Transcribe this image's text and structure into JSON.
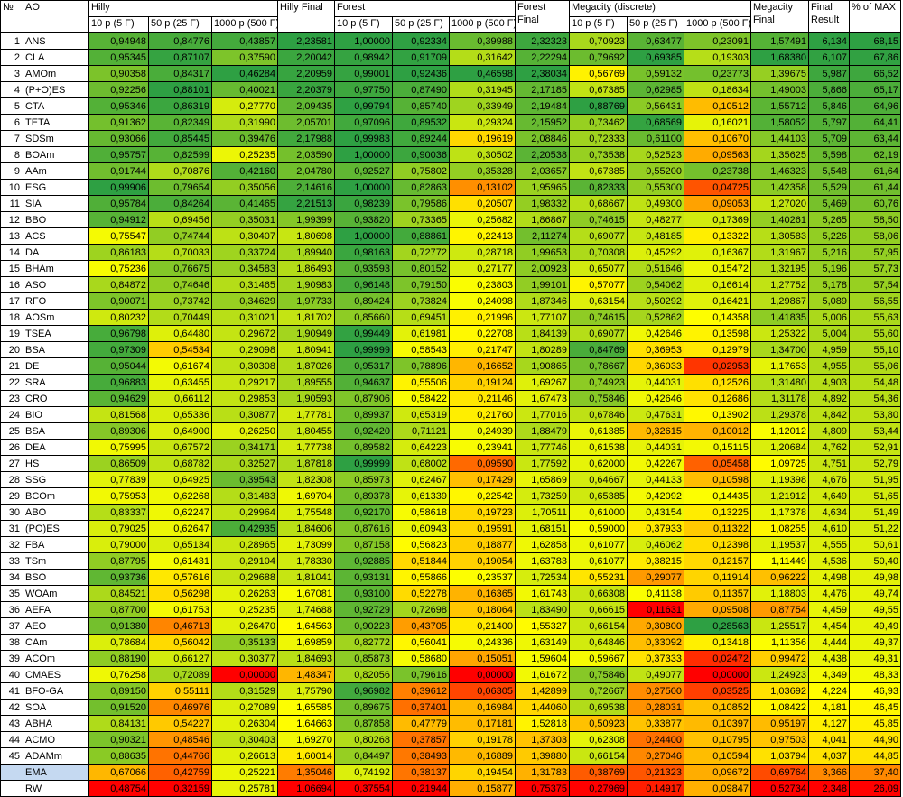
{
  "headers": {
    "idx": "№",
    "ao": "AO",
    "hilly": "Hilly",
    "forest": "Forest",
    "megacity": "Megacity (discrete)",
    "sub1": "10 p (5 F)",
    "sub2": "50 p (25 F)",
    "sub3": "1000 p (500 F)",
    "hilly_final": "Hilly Final",
    "forest_final": "Forest Final",
    "megacity_final": "Megacity Final",
    "final_result": "Final Result",
    "pct_max": "% of MAX"
  },
  "colors": {
    "scale_low": "#ff0000",
    "scale_mid": "#ffff00",
    "scale_high": "#2ea043",
    "highlight_row": "#c5d9f1"
  },
  "rows": [
    {
      "n": "1",
      "ao": "ANS",
      "v": [
        "0,94948",
        "0,84776",
        "0,43857",
        "2,23581",
        "1,00000",
        "0,92334",
        "0,39988",
        "2,32323",
        "0,70923",
        "0,63477",
        "0,23091",
        "1,57491",
        "6,134",
        "68,15"
      ]
    },
    {
      "n": "2",
      "ao": "CLA",
      "v": [
        "0,95345",
        "0,87107",
        "0,37590",
        "2,20042",
        "0,98942",
        "0,91709",
        "0,31642",
        "2,22294",
        "0,79692",
        "0,69385",
        "0,19303",
        "1,68380",
        "6,107",
        "67,86"
      ]
    },
    {
      "n": "3",
      "ao": "AMOm",
      "v": [
        "0,90358",
        "0,84317",
        "0,46284",
        "2,20959",
        "0,99001",
        "0,92436",
        "0,46598",
        "2,38034",
        "0,56769",
        "0,59132",
        "0,23773",
        "1,39675",
        "5,987",
        "66,52"
      ]
    },
    {
      "n": "4",
      "ao": "(P+O)ES",
      "v": [
        "0,92256",
        "0,88101",
        "0,40021",
        "2,20379",
        "0,97750",
        "0,87490",
        "0,31945",
        "2,17185",
        "0,67385",
        "0,62985",
        "0,18634",
        "1,49003",
        "5,866",
        "65,17"
      ]
    },
    {
      "n": "5",
      "ao": "CTA",
      "v": [
        "0,95346",
        "0,86319",
        "0,27770",
        "2,09435",
        "0,99794",
        "0,85740",
        "0,33949",
        "2,19484",
        "0,88769",
        "0,56431",
        "0,10512",
        "1,55712",
        "5,846",
        "64,96"
      ]
    },
    {
      "n": "6",
      "ao": "TETA",
      "v": [
        "0,91362",
        "0,82349",
        "0,31990",
        "2,05701",
        "0,97096",
        "0,89532",
        "0,29324",
        "2,15952",
        "0,73462",
        "0,68569",
        "0,16021",
        "1,58052",
        "5,797",
        "64,41"
      ]
    },
    {
      "n": "7",
      "ao": "SDSm",
      "v": [
        "0,93066",
        "0,85445",
        "0,39476",
        "2,17988",
        "0,99983",
        "0,89244",
        "0,19619",
        "2,08846",
        "0,72333",
        "0,61100",
        "0,10670",
        "1,44103",
        "5,709",
        "63,44"
      ]
    },
    {
      "n": "8",
      "ao": "BOAm",
      "v": [
        "0,95757",
        "0,82599",
        "0,25235",
        "2,03590",
        "1,00000",
        "0,90036",
        "0,30502",
        "2,20538",
        "0,73538",
        "0,52523",
        "0,09563",
        "1,35625",
        "5,598",
        "62,19"
      ]
    },
    {
      "n": "9",
      "ao": "AAm",
      "v": [
        "0,91744",
        "0,70876",
        "0,42160",
        "2,04780",
        "0,92527",
        "0,75802",
        "0,35328",
        "2,03657",
        "0,67385",
        "0,55200",
        "0,23738",
        "1,46323",
        "5,548",
        "61,64"
      ]
    },
    {
      "n": "10",
      "ao": "ESG",
      "v": [
        "0,99906",
        "0,79654",
        "0,35056",
        "2,14616",
        "1,00000",
        "0,82863",
        "0,13102",
        "1,95965",
        "0,82333",
        "0,55300",
        "0,04725",
        "1,42358",
        "5,529",
        "61,44"
      ]
    },
    {
      "n": "11",
      "ao": "SIA",
      "v": [
        "0,95784",
        "0,84264",
        "0,41465",
        "2,21513",
        "0,98239",
        "0,79586",
        "0,20507",
        "1,98332",
        "0,68667",
        "0,49300",
        "0,09053",
        "1,27020",
        "5,469",
        "60,76"
      ]
    },
    {
      "n": "12",
      "ao": "BBO",
      "v": [
        "0,94912",
        "0,69456",
        "0,35031",
        "1,99399",
        "0,93820",
        "0,73365",
        "0,25682",
        "1,86867",
        "0,74615",
        "0,48277",
        "0,17369",
        "1,40261",
        "5,265",
        "58,50"
      ]
    },
    {
      "n": "13",
      "ao": "ACS",
      "v": [
        "0,75547",
        "0,74744",
        "0,30407",
        "1,80698",
        "1,00000",
        "0,88861",
        "0,22413",
        "2,11274",
        "0,69077",
        "0,48185",
        "0,13322",
        "1,30583",
        "5,226",
        "58,06"
      ]
    },
    {
      "n": "14",
      "ao": "DA",
      "v": [
        "0,86183",
        "0,70033",
        "0,33724",
        "1,89940",
        "0,98163",
        "0,72772",
        "0,28718",
        "1,99653",
        "0,70308",
        "0,45292",
        "0,16367",
        "1,31967",
        "5,216",
        "57,95"
      ]
    },
    {
      "n": "15",
      "ao": "BHAm",
      "v": [
        "0,75236",
        "0,76675",
        "0,34583",
        "1,86493",
        "0,93593",
        "0,80152",
        "0,27177",
        "2,00923",
        "0,65077",
        "0,51646",
        "0,15472",
        "1,32195",
        "5,196",
        "57,73"
      ]
    },
    {
      "n": "16",
      "ao": "ASO",
      "v": [
        "0,84872",
        "0,74646",
        "0,31465",
        "1,90983",
        "0,96148",
        "0,79150",
        "0,23803",
        "1,99101",
        "0,57077",
        "0,54062",
        "0,16614",
        "1,27752",
        "5,178",
        "57,54"
      ]
    },
    {
      "n": "17",
      "ao": "RFO",
      "v": [
        "0,90071",
        "0,73742",
        "0,34629",
        "1,97733",
        "0,89424",
        "0,73824",
        "0,24098",
        "1,87346",
        "0,63154",
        "0,50292",
        "0,16421",
        "1,29867",
        "5,089",
        "56,55"
      ]
    },
    {
      "n": "18",
      "ao": "AOSm",
      "v": [
        "0,80232",
        "0,70449",
        "0,31021",
        "1,81702",
        "0,85660",
        "0,69451",
        "0,21996",
        "1,77107",
        "0,74615",
        "0,52862",
        "0,14358",
        "1,41835",
        "5,006",
        "55,63"
      ]
    },
    {
      "n": "19",
      "ao": "TSEA",
      "v": [
        "0,96798",
        "0,64480",
        "0,29672",
        "1,90949",
        "0,99449",
        "0,61981",
        "0,22708",
        "1,84139",
        "0,69077",
        "0,42646",
        "0,13598",
        "1,25322",
        "5,004",
        "55,60"
      ]
    },
    {
      "n": "20",
      "ao": "BSA",
      "v": [
        "0,97309",
        "0,54534",
        "0,29098",
        "1,80941",
        "0,99999",
        "0,58543",
        "0,21747",
        "1,80289",
        "0,84769",
        "0,36953",
        "0,12979",
        "1,34700",
        "4,959",
        "55,10"
      ]
    },
    {
      "n": "21",
      "ao": "DE",
      "v": [
        "0,95044",
        "0,61674",
        "0,30308",
        "1,87026",
        "0,95317",
        "0,78896",
        "0,16652",
        "1,90865",
        "0,78667",
        "0,36033",
        "0,02953",
        "1,17653",
        "4,955",
        "55,06"
      ]
    },
    {
      "n": "22",
      "ao": "SRA",
      "v": [
        "0,96883",
        "0,63455",
        "0,29217",
        "1,89555",
        "0,94637",
        "0,55506",
        "0,19124",
        "1,69267",
        "0,74923",
        "0,44031",
        "0,12526",
        "1,31480",
        "4,903",
        "54,48"
      ]
    },
    {
      "n": "23",
      "ao": "CRO",
      "v": [
        "0,94629",
        "0,66112",
        "0,29853",
        "1,90593",
        "0,87906",
        "0,58422",
        "0,21146",
        "1,67473",
        "0,75846",
        "0,42646",
        "0,12686",
        "1,31178",
        "4,892",
        "54,36"
      ]
    },
    {
      "n": "24",
      "ao": "BIO",
      "v": [
        "0,81568",
        "0,65336",
        "0,30877",
        "1,77781",
        "0,89937",
        "0,65319",
        "0,21760",
        "1,77016",
        "0,67846",
        "0,47631",
        "0,13902",
        "1,29378",
        "4,842",
        "53,80"
      ]
    },
    {
      "n": "25",
      "ao": "BSA",
      "v": [
        "0,89306",
        "0,64900",
        "0,26250",
        "1,80455",
        "0,92420",
        "0,71121",
        "0,24939",
        "1,88479",
        "0,61385",
        "0,32615",
        "0,10012",
        "1,12012",
        "4,809",
        "53,44"
      ]
    },
    {
      "n": "26",
      "ao": "DEA",
      "v": [
        "0,75995",
        "0,67572",
        "0,34171",
        "1,77738",
        "0,89582",
        "0,64223",
        "0,23941",
        "1,77746",
        "0,61538",
        "0,44031",
        "0,15115",
        "1,20684",
        "4,762",
        "52,91"
      ]
    },
    {
      "n": "27",
      "ao": "HS",
      "v": [
        "0,86509",
        "0,68782",
        "0,32527",
        "1,87818",
        "0,99999",
        "0,68002",
        "0,09590",
        "1,77592",
        "0,62000",
        "0,42267",
        "0,05458",
        "1,09725",
        "4,751",
        "52,79"
      ]
    },
    {
      "n": "28",
      "ao": "SSG",
      "v": [
        "0,77839",
        "0,64925",
        "0,39543",
        "1,82308",
        "0,85973",
        "0,62467",
        "0,17429",
        "1,65869",
        "0,64667",
        "0,44133",
        "0,10598",
        "1,19398",
        "4,676",
        "51,95"
      ]
    },
    {
      "n": "29",
      "ao": "BCOm",
      "v": [
        "0,75953",
        "0,62268",
        "0,31483",
        "1,69704",
        "0,89378",
        "0,61339",
        "0,22542",
        "1,73259",
        "0,65385",
        "0,42092",
        "0,14435",
        "1,21912",
        "4,649",
        "51,65"
      ]
    },
    {
      "n": "30",
      "ao": "ABO",
      "v": [
        "0,83337",
        "0,62247",
        "0,29964",
        "1,75548",
        "0,92170",
        "0,58618",
        "0,19723",
        "1,70511",
        "0,61000",
        "0,43154",
        "0,13225",
        "1,17378",
        "4,634",
        "51,49"
      ]
    },
    {
      "n": "31",
      "ao": "(PO)ES",
      "v": [
        "0,79025",
        "0,62647",
        "0,42935",
        "1,84606",
        "0,87616",
        "0,60943",
        "0,19591",
        "1,68151",
        "0,59000",
        "0,37933",
        "0,11322",
        "1,08255",
        "4,610",
        "51,22"
      ]
    },
    {
      "n": "32",
      "ao": "FBA",
      "v": [
        "0,79000",
        "0,65134",
        "0,28965",
        "1,73099",
        "0,87158",
        "0,56823",
        "0,18877",
        "1,62858",
        "0,61077",
        "0,46062",
        "0,12398",
        "1,19537",
        "4,555",
        "50,61"
      ]
    },
    {
      "n": "33",
      "ao": "TSm",
      "v": [
        "0,87795",
        "0,61431",
        "0,29104",
        "1,78330",
        "0,92885",
        "0,51844",
        "0,19054",
        "1,63783",
        "0,61077",
        "0,38215",
        "0,12157",
        "1,11449",
        "4,536",
        "50,40"
      ]
    },
    {
      "n": "34",
      "ao": "BSO",
      "v": [
        "0,93736",
        "0,57616",
        "0,29688",
        "1,81041",
        "0,93131",
        "0,55866",
        "0,23537",
        "1,72534",
        "0,55231",
        "0,29077",
        "0,11914",
        "0,96222",
        "4,498",
        "49,98"
      ]
    },
    {
      "n": "35",
      "ao": "WOAm",
      "v": [
        "0,84521",
        "0,56298",
        "0,26263",
        "1,67081",
        "0,93100",
        "0,52278",
        "0,16365",
        "1,61743",
        "0,66308",
        "0,41138",
        "0,11357",
        "1,18803",
        "4,476",
        "49,74"
      ]
    },
    {
      "n": "36",
      "ao": "AEFA",
      "v": [
        "0,87700",
        "0,61753",
        "0,25235",
        "1,74688",
        "0,92729",
        "0,72698",
        "0,18064",
        "1,83490",
        "0,66615",
        "0,11631",
        "0,09508",
        "0,87754",
        "4,459",
        "49,55"
      ]
    },
    {
      "n": "37",
      "ao": "AEO",
      "v": [
        "0,91380",
        "0,46713",
        "0,26470",
        "1,64563",
        "0,90223",
        "0,43705",
        "0,21400",
        "1,55327",
        "0,66154",
        "0,30800",
        "0,28563",
        "1,25517",
        "4,454",
        "49,49"
      ]
    },
    {
      "n": "38",
      "ao": "CAm",
      "v": [
        "0,78684",
        "0,56042",
        "0,35133",
        "1,69859",
        "0,82772",
        "0,56041",
        "0,24336",
        "1,63149",
        "0,64846",
        "0,33092",
        "0,13418",
        "1,11356",
        "4,444",
        "49,37"
      ]
    },
    {
      "n": "39",
      "ao": "ACOm",
      "v": [
        "0,88190",
        "0,66127",
        "0,30377",
        "1,84693",
        "0,85873",
        "0,58680",
        "0,15051",
        "1,59604",
        "0,59667",
        "0,37333",
        "0,02472",
        "0,99472",
        "4,438",
        "49,31"
      ]
    },
    {
      "n": "40",
      "ao": "CMAES",
      "v": [
        "0,76258",
        "0,72089",
        "0,00000",
        "1,48347",
        "0,82056",
        "0,79616",
        "0,00000",
        "1,61672",
        "0,75846",
        "0,49077",
        "0,00000",
        "1,24923",
        "4,349",
        "48,33"
      ]
    },
    {
      "n": "41",
      "ao": "BFO-GA",
      "v": [
        "0,89150",
        "0,55111",
        "0,31529",
        "1,75790",
        "0,96982",
        "0,39612",
        "0,06305",
        "1,42899",
        "0,72667",
        "0,27500",
        "0,03525",
        "1,03692",
        "4,224",
        "46,93"
      ]
    },
    {
      "n": "42",
      "ao": "SOA",
      "v": [
        "0,91520",
        "0,46976",
        "0,27089",
        "1,65585",
        "0,89675",
        "0,37401",
        "0,16984",
        "1,44060",
        "0,69538",
        "0,28031",
        "0,10852",
        "1,08422",
        "4,181",
        "46,45"
      ]
    },
    {
      "n": "43",
      "ao": "ABHA",
      "v": [
        "0,84131",
        "0,54227",
        "0,26304",
        "1,64663",
        "0,87858",
        "0,47779",
        "0,17181",
        "1,52818",
        "0,50923",
        "0,33877",
        "0,10397",
        "0,95197",
        "4,127",
        "45,85"
      ]
    },
    {
      "n": "44",
      "ao": "ACMO",
      "v": [
        "0,90321",
        "0,48546",
        "0,30403",
        "1,69270",
        "0,80268",
        "0,37857",
        "0,19178",
        "1,37303",
        "0,62308",
        "0,24400",
        "0,10795",
        "0,97503",
        "4,041",
        "44,90"
      ]
    },
    {
      "n": "45",
      "ao": "ADAMm",
      "v": [
        "0,88635",
        "0,44766",
        "0,26613",
        "1,60014",
        "0,84497",
        "0,38493",
        "0,16889",
        "1,39880",
        "0,66154",
        "0,27046",
        "0,10594",
        "1,03794",
        "4,037",
        "44,85"
      ]
    },
    {
      "n": "",
      "ao": "EMA",
      "hl": true,
      "v": [
        "0,67066",
        "0,42759",
        "0,25221",
        "1,35046",
        "0,74192",
        "0,38137",
        "0,19454",
        "1,31783",
        "0,38769",
        "0,21323",
        "0,09672",
        "0,69764",
        "3,366",
        "37,40"
      ]
    },
    {
      "n": "",
      "ao": "RW",
      "v": [
        "0,48754",
        "0,32159",
        "0,25781",
        "1,06694",
        "0,37554",
        "0,21944",
        "0,15877",
        "0,75375",
        "0,27969",
        "0,14917",
        "0,09847",
        "0,52734",
        "2,348",
        "26,09"
      ]
    }
  ]
}
